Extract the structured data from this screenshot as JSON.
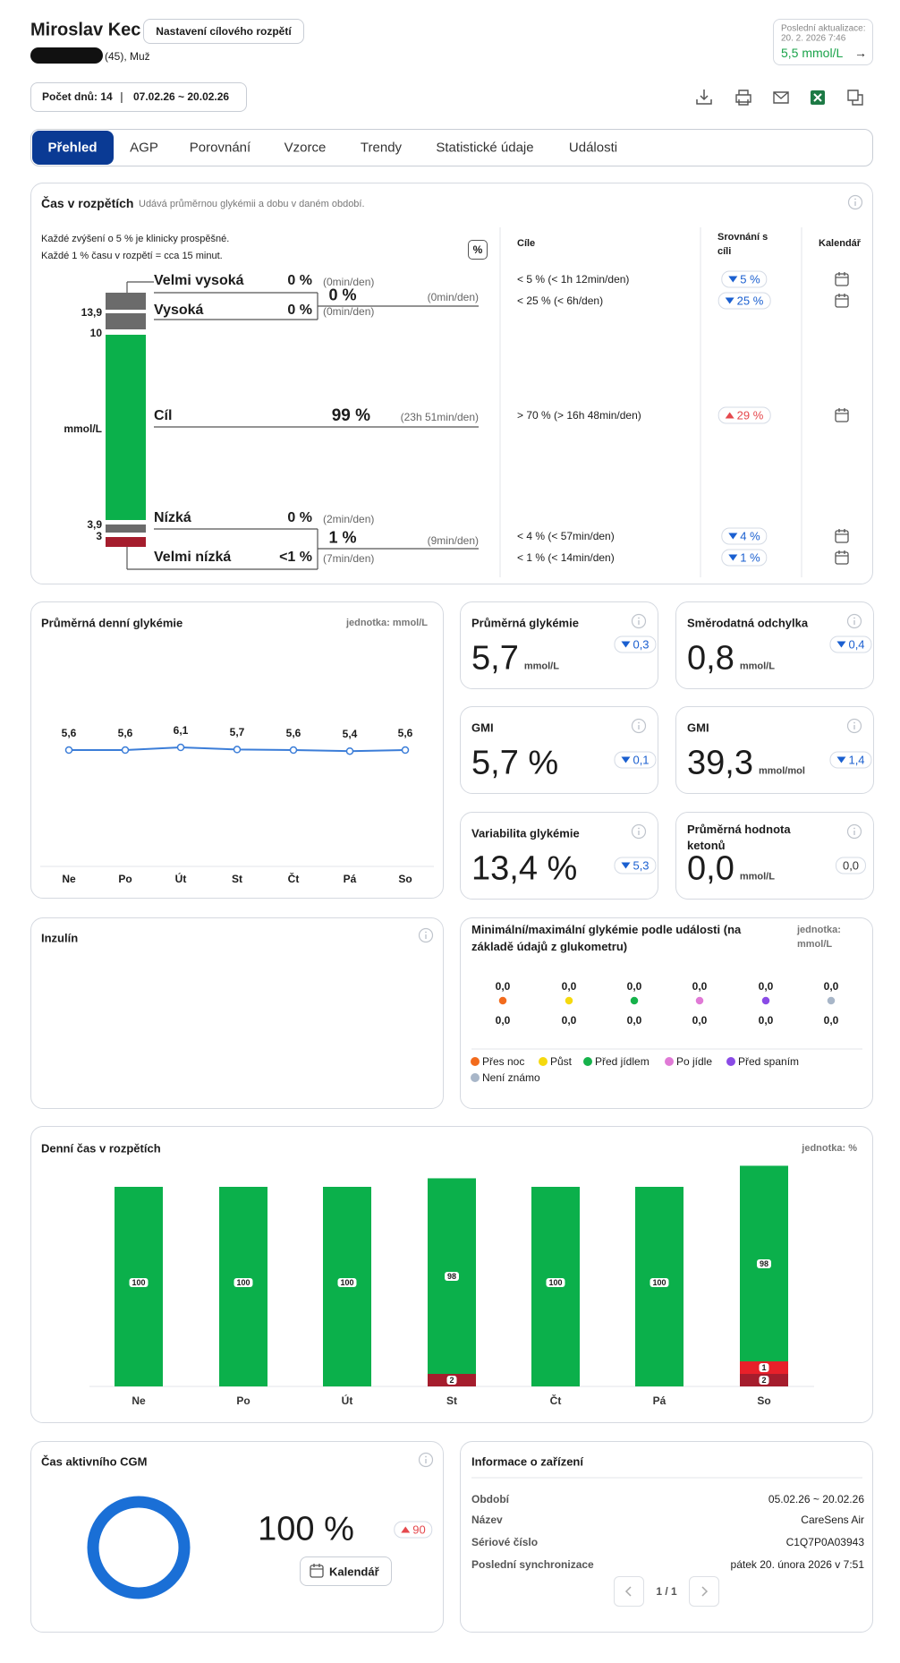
{
  "header": {
    "name": "Miroslav Kec",
    "target_range_button": "Nastavení cílového rozpětí",
    "patient": "(45), Muž",
    "last_update_label": "Poslední aktualizace:",
    "last_update_time": "20. 2. 2026 7:46",
    "last_glucose": "5,5 mmol/L",
    "last_update_arrow": "→",
    "days": "Počet dnů: 14",
    "separator": "|",
    "period": "07.02.26 ~ 20.02.26"
  },
  "tabs": [
    "Přehled",
    "AGP",
    "Porovnání",
    "Vzorce",
    "Trendy",
    "Statistické údaje",
    "Události"
  ],
  "time_in_range": {
    "title": "Čas v rozpětích",
    "subtitle": "Udává průměrnou glykémii a dobu v daném období.",
    "notes": [
      "Každé zvýšení o 5 % je klinicky prospěšné.",
      "Každé 1 % času v rozpětí = cca 15 minut."
    ],
    "percent_toggle": "%",
    "columns": [
      "Cíle",
      "Srovnání s cíli",
      "Kalendář"
    ],
    "scale_labels": [
      "13,9",
      "10",
      "mmol/L",
      "3,9",
      "3"
    ],
    "ranges": [
      {
        "name": "Velmi vysoká",
        "percent": "0 %",
        "time": "(0min/den)",
        "target": "< 5 % (< 1h 12min/den)",
        "comparison": "5 %",
        "trend": "down"
      },
      {
        "name": "Vysoká",
        "percent": "0 %",
        "time": "(0min/den)",
        "target": "< 25 % (< 6h/den)",
        "comparison": "25 %",
        "trend": "down"
      },
      {
        "name": "Cíl",
        "percent": "99 %",
        "time": "(23h 51min/den)",
        "target": "> 70 % (> 16h 48min/den)",
        "comparison": "29 %",
        "trend": "up"
      },
      {
        "name": "Nízká",
        "percent": "0 %",
        "time": "(2min/den)",
        "target": "< 4 % (< 57min/den)",
        "comparison": "4 %",
        "trend": "down"
      },
      {
        "name": "Velmi nízká",
        "percent": "<1 %",
        "time": "(7min/den)",
        "target": "< 1 % (< 14min/den)",
        "comparison": "1 %",
        "trend": "down"
      }
    ],
    "combined": [
      {
        "percent": "0 %",
        "time": "(0min/den)"
      },
      {
        "percent": "1 %",
        "time": "(9min/den)"
      }
    ]
  },
  "chart_data": [
    {
      "type": "line",
      "title": "Průměrná denní glykémie",
      "unit": "jednotka: mmol/L",
      "categories": [
        "Ne",
        "Po",
        "Út",
        "St",
        "Čt",
        "Pá",
        "So"
      ],
      "values": [
        5.6,
        5.6,
        6.1,
        5.7,
        5.6,
        5.4,
        5.6
      ],
      "value_labels": [
        "5,6",
        "5,6",
        "6,1",
        "5,7",
        "5,6",
        "5,4",
        "5,6"
      ],
      "color": "#3b7dd8"
    },
    {
      "type": "bar",
      "stacked": true,
      "title": "Denní čas v rozpětích",
      "unit": "jednotka: %",
      "categories": [
        "Ne",
        "Po",
        "Út",
        "St",
        "Čt",
        "Pá",
        "So"
      ],
      "series": [
        {
          "color": "#a51d2d",
          "values": [
            0,
            0,
            0,
            2,
            0,
            0,
            2
          ]
        },
        {
          "color": "#e8202a",
          "values": [
            0,
            0,
            0,
            0,
            0,
            0,
            1
          ]
        },
        {
          "color": "#0bb04b",
          "values": [
            100,
            100,
            100,
            98,
            100,
            100,
            98
          ]
        }
      ]
    }
  ],
  "stats": [
    {
      "title": "Průměrná glykémie",
      "value": "5,7",
      "unit": "mmol/L",
      "change": "0,3",
      "trend": "down"
    },
    {
      "title": "Směrodatná odchylka",
      "value": "0,8",
      "unit": "mmol/L",
      "change": "0,4",
      "trend": "down"
    },
    {
      "title": "GMI",
      "value": "5,7 %",
      "change": "0,1",
      "trend": "down"
    },
    {
      "title": "GMI",
      "value": "39,3",
      "unit": "mmol/mol",
      "change": "1,4",
      "trend": "down"
    },
    {
      "title": "Variabilita glykémie",
      "value": "13,4 %",
      "change": "5,3",
      "trend": "down"
    },
    {
      "title": "Průměrná hodnota ketonů",
      "value": "0,0",
      "unit": "mmol/L",
      "change": "0,0"
    }
  ],
  "insulin": {
    "title": "Inzulín"
  },
  "events": {
    "title": "Minimální/maximální glykémie podle události (na základě údajů z glukometru)",
    "unit": "jednotka: mmol/L",
    "items": [
      {
        "name": "Přes noc",
        "color": "#f26b1d",
        "max": "0,0",
        "min": "0,0"
      },
      {
        "name": "Půst",
        "color": "#f5d90f",
        "max": "0,0",
        "min": "0,0"
      },
      {
        "name": "Před jídlem",
        "color": "#16b24b",
        "max": "0,0",
        "min": "0,0"
      },
      {
        "name": "Po jídle",
        "color": "#e07ad6",
        "max": "0,0",
        "min": "0,0"
      },
      {
        "name": "Před spaním",
        "color": "#8a4be6",
        "max": "0,0",
        "min": "0,0"
      },
      {
        "name": "Není známo",
        "color": "#a8b6c8",
        "max": "0,0",
        "min": "0,0"
      }
    ]
  },
  "cgm": {
    "title": "Čas aktivního CGM",
    "value": "100 %",
    "change": "90",
    "trend": "up",
    "calendar_button": "Kalendář"
  },
  "device": {
    "title": "Informace o zařízení",
    "rows": [
      [
        "Období",
        "05.02.26 ~ 20.02.26"
      ],
      [
        "Název",
        "CareSens Air"
      ],
      [
        "Sériové číslo",
        "C1Q7P0A03943"
      ],
      [
        "Poslední synchronizace",
        "pátek 20. února 2026 v 7:51"
      ]
    ],
    "page": "1 / 1"
  }
}
